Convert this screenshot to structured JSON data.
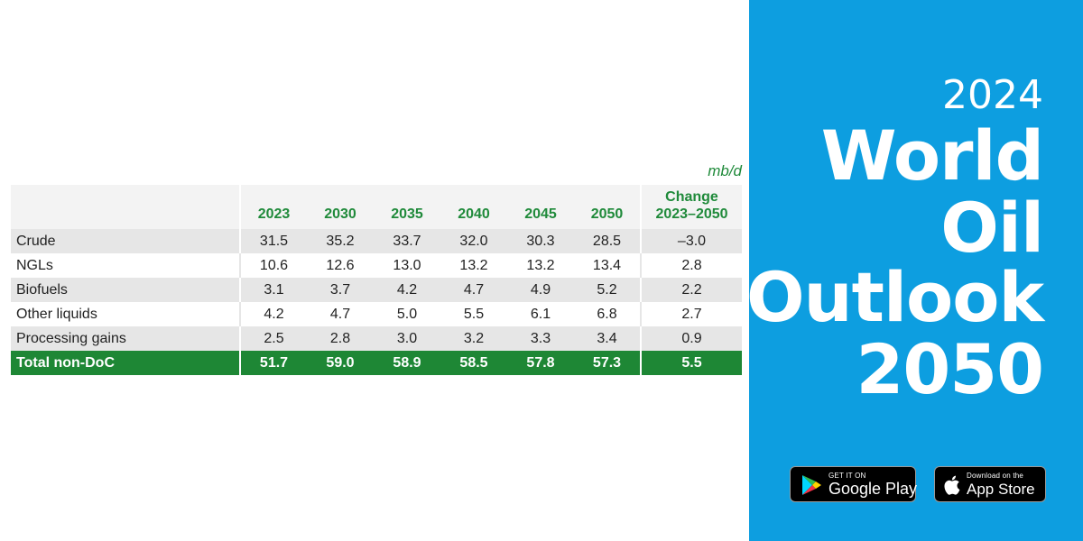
{
  "table": {
    "unit": "mb/d",
    "columns": [
      "2023",
      "2030",
      "2035",
      "2040",
      "2045",
      "2050"
    ],
    "change_header": [
      "Change",
      "2023–2050"
    ],
    "rows": [
      {
        "label": "Crude",
        "values": [
          "31.5",
          "35.2",
          "33.7",
          "32.0",
          "30.3",
          "28.5"
        ],
        "change": "–3.0"
      },
      {
        "label": "NGLs",
        "values": [
          "10.6",
          "12.6",
          "13.0",
          "13.2",
          "13.2",
          "13.4"
        ],
        "change": "2.8"
      },
      {
        "label": "Biofuels",
        "values": [
          "3.1",
          "3.7",
          "4.2",
          "4.7",
          "4.9",
          "5.2"
        ],
        "change": "2.2"
      },
      {
        "label": "Other liquids",
        "values": [
          "4.2",
          "4.7",
          "5.0",
          "5.5",
          "6.1",
          "6.8"
        ],
        "change": "2.7"
      },
      {
        "label": "Processing gains",
        "values": [
          "2.5",
          "2.8",
          "3.0",
          "3.2",
          "3.3",
          "3.4"
        ],
        "change": "0.9"
      }
    ],
    "total": {
      "label": "Total non-DoC",
      "values": [
        "51.7",
        "59.0",
        "58.9",
        "58.5",
        "57.8",
        "57.3"
      ],
      "change": "5.5"
    }
  },
  "chart_data": {
    "type": "table",
    "unit": "mb/d",
    "columns": [
      "2023",
      "2030",
      "2035",
      "2040",
      "2045",
      "2050",
      "Change 2023–2050"
    ],
    "rows": [
      {
        "label": "Crude",
        "values": [
          31.5,
          35.2,
          33.7,
          32.0,
          30.3,
          28.5,
          -3.0
        ]
      },
      {
        "label": "NGLs",
        "values": [
          10.6,
          12.6,
          13.0,
          13.2,
          13.2,
          13.4,
          2.8
        ]
      },
      {
        "label": "Biofuels",
        "values": [
          3.1,
          3.7,
          4.2,
          4.7,
          4.9,
          5.2,
          2.2
        ]
      },
      {
        "label": "Other liquids",
        "values": [
          4.2,
          4.7,
          5.0,
          5.5,
          6.1,
          6.8,
          2.7
        ]
      },
      {
        "label": "Processing gains",
        "values": [
          2.5,
          2.8,
          3.0,
          3.2,
          3.3,
          3.4,
          0.9
        ]
      },
      {
        "label": "Total non-DoC",
        "values": [
          51.7,
          59.0,
          58.9,
          58.5,
          57.8,
          57.3,
          5.5
        ]
      }
    ]
  },
  "promo": {
    "year": "2024",
    "title_lines": [
      "World",
      "Oil",
      "Outlook",
      "2050"
    ],
    "background_color": "#0d9ee0"
  },
  "badges": {
    "google_play": {
      "small": "GET IT ON",
      "big": "Google Play",
      "icon": "google-play-icon"
    },
    "app_store": {
      "small": "Download on the",
      "big": "App Store",
      "icon": "apple-icon"
    }
  },
  "colors": {
    "header_text": "#1f8a3a",
    "total_row": "#1e8735",
    "row_shade": "#e6e6e6"
  }
}
